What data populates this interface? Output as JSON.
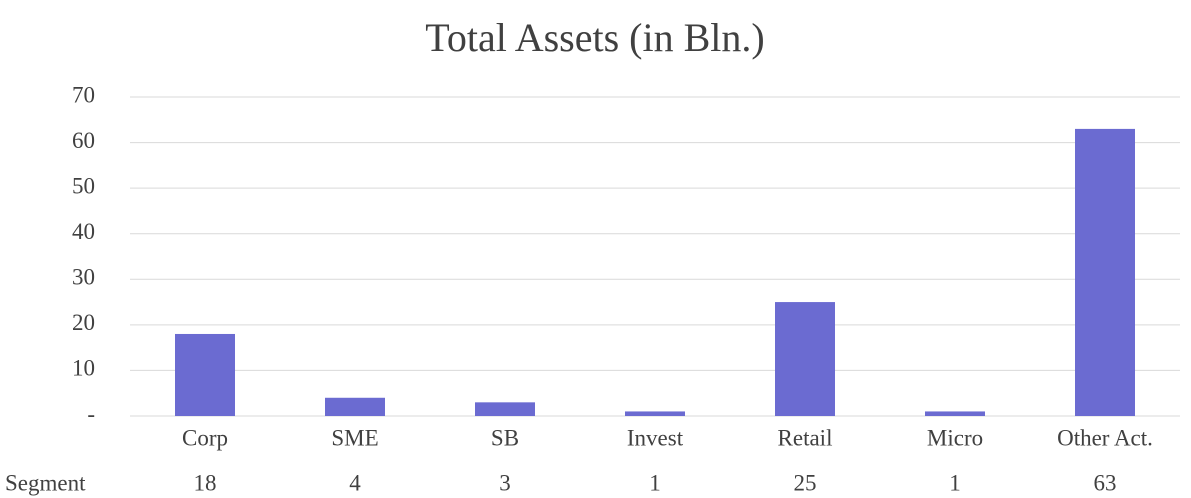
{
  "chart_data": {
    "type": "bar",
    "title": "Total Assets (in Bln.)",
    "categories": [
      "Corp",
      "SME",
      "SB",
      "Invest",
      "Retail",
      "Micro",
      "Other Act."
    ],
    "series": [
      {
        "name": "Segment",
        "color": "#6b6bd1",
        "values": [
          18,
          4,
          3,
          1,
          25,
          1,
          63
        ]
      }
    ],
    "ylim": [
      0,
      70
    ],
    "yticks": [
      {
        "value": 0,
        "label": "-"
      },
      10,
      20,
      30,
      40,
      50,
      60,
      70
    ],
    "grid": true
  }
}
